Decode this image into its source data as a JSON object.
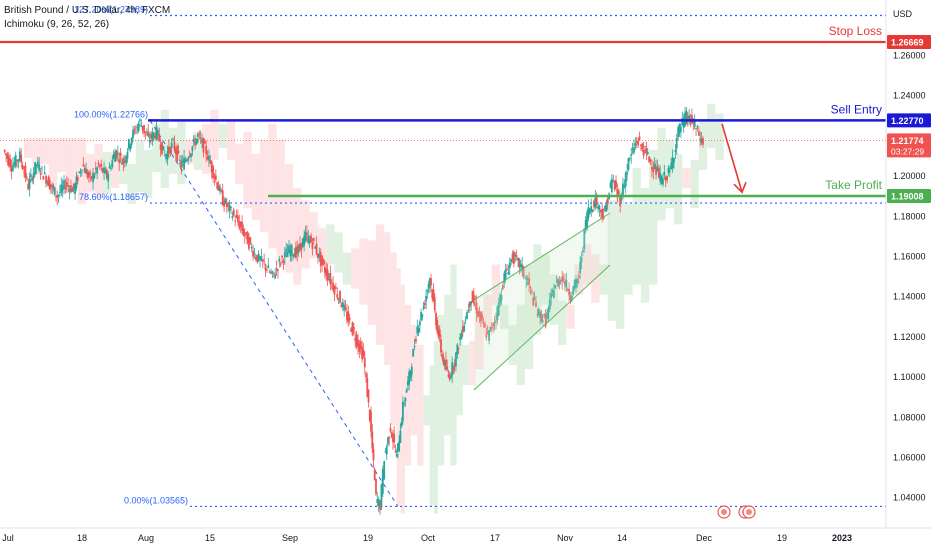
{
  "header": {
    "symbol_line": "British Pound / U.S. Dollar, 4h, FXCM",
    "indicator_line": "Ichimoku (9, 26, 52, 26)"
  },
  "currency": "USD",
  "colors": {
    "up": "#26a69a",
    "down": "#ef5350",
    "stop_loss": "#e53935",
    "sell_entry": "#1a1ad6",
    "take_profit": "#4caf50",
    "fib_line": "#2962ff",
    "cloud_bull": "#c8e6c9",
    "cloud_bear": "#ffcdd2",
    "arrow": "#e53935",
    "channel": "#4caf50"
  },
  "chart_data": {
    "type": "candlestick",
    "instrument": "GBP/USD",
    "timeframe": "4h",
    "y_axis": {
      "ticks": [
        "1.26000",
        "1.24000",
        "1.20000",
        "1.18000",
        "1.16000",
        "1.14000",
        "1.12000",
        "1.10000",
        "1.08000",
        "1.06000",
        "1.04000"
      ],
      "tick_values": [
        1.26,
        1.24,
        1.2,
        1.18,
        1.16,
        1.14,
        1.12,
        1.1,
        1.08,
        1.06,
        1.04
      ],
      "range": [
        1.03,
        1.29
      ]
    },
    "x_axis": {
      "ticks": [
        "Jul",
        "18",
        "Aug",
        "15",
        "Sep",
        "19",
        "Oct",
        "17",
        "Nov",
        "14",
        "Dec",
        "19",
        "2023"
      ]
    },
    "levels": [
      {
        "name": "Stop Loss",
        "value": 1.26669,
        "label": "1.26669"
      },
      {
        "name": "Sell Entry",
        "value": 1.2277,
        "label": "1.22770"
      },
      {
        "name": "Take Profit",
        "value": 1.19008,
        "label": "1.19008"
      }
    ],
    "current_price": {
      "value": 1.21774,
      "label": "1.21774",
      "countdown": "03:27:29"
    },
    "fibonacci": [
      {
        "label": "127.20%(1.27989)",
        "value": 1.27989
      },
      {
        "label": "100.00%(1.22766)",
        "value": 1.22766
      },
      {
        "label": "78.60%(1.18657)",
        "value": 1.18657
      },
      {
        "label": "0.00%(1.03565)",
        "value": 1.03565
      }
    ],
    "price_path": [
      [
        0,
        1.213
      ],
      [
        4,
        1.205
      ],
      [
        8,
        1.21
      ],
      [
        12,
        1.195
      ],
      [
        16,
        1.206
      ],
      [
        20,
        1.2
      ],
      [
        26,
        1.19
      ],
      [
        30,
        1.196
      ],
      [
        34,
        1.193
      ],
      [
        38,
        1.206
      ],
      [
        42,
        1.198
      ],
      [
        46,
        1.205
      ],
      [
        50,
        1.2
      ],
      [
        54,
        1.212
      ],
      [
        58,
        1.207
      ],
      [
        62,
        1.22
      ],
      [
        66,
        1.227
      ],
      [
        70,
        1.218
      ],
      [
        74,
        1.222
      ],
      [
        78,
        1.21
      ],
      [
        82,
        1.216
      ],
      [
        86,
        1.205
      ],
      [
        90,
        1.212
      ],
      [
        94,
        1.22
      ],
      [
        98,
        1.212
      ],
      [
        102,
        1.2
      ],
      [
        106,
        1.188
      ],
      [
        110,
        1.182
      ],
      [
        114,
        1.176
      ],
      [
        118,
        1.168
      ],
      [
        122,
        1.16
      ],
      [
        126,
        1.156
      ],
      [
        130,
        1.15
      ],
      [
        134,
        1.158
      ],
      [
        138,
        1.163
      ],
      [
        142,
        1.162
      ],
      [
        146,
        1.17
      ],
      [
        150,
        1.166
      ],
      [
        154,
        1.156
      ],
      [
        158,
        1.148
      ],
      [
        162,
        1.14
      ],
      [
        166,
        1.13
      ],
      [
        170,
        1.12
      ],
      [
        174,
        1.11
      ],
      [
        177,
        1.08
      ],
      [
        180,
        1.04
      ],
      [
        182,
        1.036
      ],
      [
        184,
        1.06
      ],
      [
        187,
        1.075
      ],
      [
        190,
        1.06
      ],
      [
        193,
        1.085
      ],
      [
        196,
        1.1
      ],
      [
        198,
        1.112
      ],
      [
        200,
        1.125
      ],
      [
        203,
        1.135
      ],
      [
        206,
        1.15
      ],
      [
        209,
        1.128
      ],
      [
        212,
        1.11
      ],
      [
        215,
        1.1
      ],
      [
        218,
        1.108
      ],
      [
        222,
        1.125
      ],
      [
        226,
        1.14
      ],
      [
        230,
        1.13
      ],
      [
        234,
        1.12
      ],
      [
        238,
        1.13
      ],
      [
        242,
        1.15
      ],
      [
        246,
        1.16
      ],
      [
        250,
        1.155
      ],
      [
        254,
        1.145
      ],
      [
        258,
        1.132
      ],
      [
        262,
        1.128
      ],
      [
        266,
        1.145
      ],
      [
        270,
        1.15
      ],
      [
        274,
        1.141
      ],
      [
        278,
        1.15
      ],
      [
        282,
        1.182
      ],
      [
        286,
        1.188
      ],
      [
        290,
        1.18
      ],
      [
        294,
        1.198
      ],
      [
        298,
        1.188
      ],
      [
        302,
        1.207
      ],
      [
        306,
        1.218
      ],
      [
        310,
        1.212
      ],
      [
        314,
        1.205
      ],
      [
        318,
        1.198
      ],
      [
        322,
        1.202
      ],
      [
        326,
        1.222
      ],
      [
        330,
        1.23
      ],
      [
        334,
        1.225
      ],
      [
        338,
        1.216
      ]
    ],
    "projection": [
      [
        338,
        1.226
      ],
      [
        346,
        1.192
      ]
    ]
  }
}
